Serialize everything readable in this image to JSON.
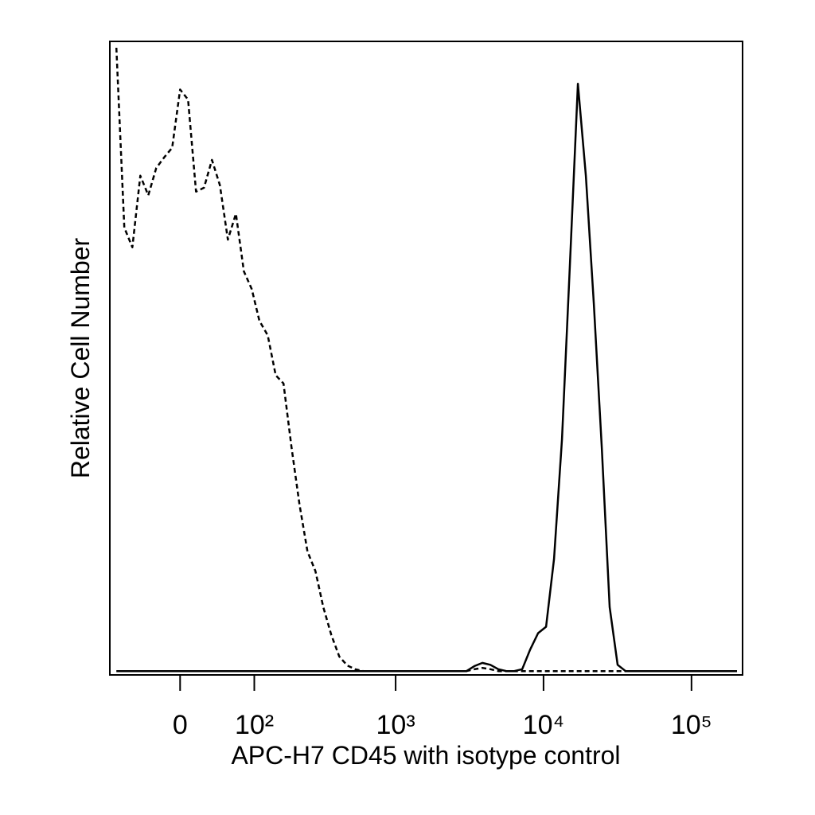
{
  "chart_data": {
    "type": "line",
    "xlabel": "APC-H7 CD45 with isotype control",
    "ylabel": "Relative Cell Number",
    "xscale": "logicle",
    "xlim": [
      -83,
      221400
    ],
    "xticks": [
      {
        "value": 0,
        "label": "0"
      },
      {
        "value": 100,
        "label": "10²"
      },
      {
        "value": 1000,
        "label": "10³"
      },
      {
        "value": 10000,
        "label": "10⁴"
      },
      {
        "value": 100000,
        "label": "10⁵"
      }
    ],
    "ylim": [
      0,
      100
    ],
    "grid": false,
    "x": [
      -81.4,
      -68.7,
      -56.9,
      -46.2,
      -36.1,
      -26.6,
      -17.5,
      -8.7,
      0,
      8.7,
      17.5,
      26.6,
      36.1,
      46.2,
      56.9,
      68.7,
      81.4,
      95.2,
      110,
      128,
      147,
      168,
      192,
      219,
      249,
      283,
      321,
      365,
      414,
      469,
      531,
      602,
      682,
      772,
      874,
      990,
      1120,
      1268,
      1435,
      1624,
      1838,
      2080,
      2354,
      2665,
      3016,
      3413,
      3863,
      4372,
      4948,
      5600,
      6338,
      7174,
      8119,
      9189,
      10400,
      11771,
      13323,
      15079,
      17066,
      19315,
      21861,
      24742,
      28003,
      31694,
      35871,
      40598,
      45949,
      52005,
      58859,
      66617,
      75397,
      85334,
      96581,
      109310,
      123717,
      140022,
      158477,
      179364,
      203004
    ],
    "series": [
      {
        "color": "#000000",
        "line_style": "dashed",
        "values": [
          99,
          70.6,
          67.5,
          78.8,
          75.7,
          80,
          81.7,
          83.2,
          92.4,
          90.8,
          76.3,
          76.9,
          81.3,
          77.3,
          68.7,
          72.8,
          63.7,
          60.9,
          55.9,
          53.6,
          47.3,
          46,
          35.9,
          26.9,
          19.5,
          16.4,
          10.7,
          6.3,
          2.9,
          1.5,
          0.9,
          0.6,
          0.6,
          0.6,
          0.6,
          0.6,
          0.6,
          0.6,
          0.6,
          0.6,
          0.6,
          0.6,
          0.6,
          0.6,
          0.6,
          0.9,
          1.1,
          0.9,
          0.6,
          0.6,
          0.6,
          0.6,
          0.6,
          0.6,
          0.6,
          0.6,
          0.6,
          0.6,
          0.6,
          0.6,
          0.6,
          0.6,
          0.6,
          0.6,
          0.6,
          0.6,
          0.6,
          0.6,
          0.6,
          0.6,
          0.6,
          0.6,
          0.6,
          0.6,
          0.6,
          0.6,
          0.6,
          0.6,
          0.6
        ]
      },
      {
        "color": "#000000",
        "line_style": "solid",
        "values": [
          0.6,
          0.6,
          0.6,
          0.6,
          0.6,
          0.6,
          0.6,
          0.6,
          0.6,
          0.6,
          0.6,
          0.6,
          0.6,
          0.6,
          0.6,
          0.6,
          0.6,
          0.6,
          0.6,
          0.6,
          0.6,
          0.6,
          0.6,
          0.6,
          0.6,
          0.6,
          0.6,
          0.6,
          0.6,
          0.6,
          0.6,
          0.6,
          0.6,
          0.6,
          0.6,
          0.6,
          0.6,
          0.6,
          0.6,
          0.6,
          0.6,
          0.6,
          0.6,
          0.6,
          0.6,
          1.4,
          1.9,
          1.6,
          0.9,
          0.6,
          0.6,
          0.9,
          4,
          6.6,
          7.6,
          18.3,
          37.2,
          64.9,
          93.3,
          78.8,
          58.6,
          35.9,
          10.7,
          1.6,
          0.6,
          0.6,
          0.6,
          0.6,
          0.6,
          0.6,
          0.6,
          0.6,
          0.6,
          0.6,
          0.6,
          0.6,
          0.6,
          0.6,
          0.6
        ]
      }
    ]
  }
}
